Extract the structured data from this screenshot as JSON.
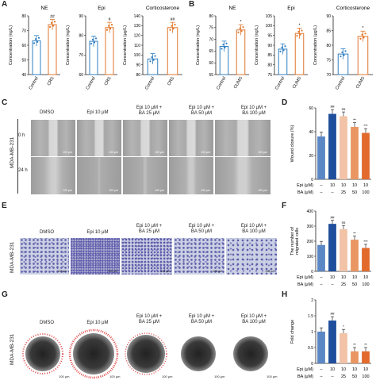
{
  "panels": {
    "A": {
      "label": "A"
    },
    "B": {
      "label": "B"
    },
    "C": {
      "label": "C"
    },
    "D": {
      "label": "D"
    },
    "E": {
      "label": "E"
    },
    "F": {
      "label": "F"
    },
    "G": {
      "label": "G"
    },
    "H": {
      "label": "H"
    }
  },
  "cell_line": "MDA-MB-231",
  "timepoints": [
    "0 h",
    "24 h"
  ],
  "column_titles": [
    "DMSO",
    "Epi 10 μM",
    "Epi 10 μM +\nBA 25 μM",
    "Epi 10 μM +\nBA 50 μM",
    "Epi 10 μM +\nBA 100 μM"
  ],
  "scale_bar": "100 μm",
  "colors": {
    "blue": "#2f7fc1",
    "orange": "#e0752b",
    "bar1": "#5b87c5",
    "bar2": "#1f4e9c",
    "bar3": "#f2c3a6",
    "bar4": "#ea9662",
    "bar5": "#e26a2c",
    "stain": "#6a63b3"
  },
  "chart_data": [
    {
      "id": "A1",
      "type": "bar",
      "title": "NE",
      "ylabel": "Concentration (ng/L)",
      "categories": [
        "Control",
        "CRS"
      ],
      "values": [
        63,
        74
      ],
      "ylim": [
        40,
        80
      ],
      "yticks": [
        40,
        50,
        60,
        70,
        80
      ],
      "sig": [
        "",
        "##"
      ],
      "colors": [
        "blue",
        "orange"
      ]
    },
    {
      "id": "A2",
      "type": "bar",
      "title": "Epi",
      "ylabel": "Concentration (ng/L)",
      "categories": [
        "Control",
        "CRS"
      ],
      "values": [
        77,
        84
      ],
      "ylim": [
        60,
        90
      ],
      "yticks": [
        60,
        70,
        80,
        90
      ],
      "sig": [
        "",
        "#"
      ],
      "colors": [
        "blue",
        "orange"
      ]
    },
    {
      "id": "A3",
      "type": "bar",
      "title": "Corticosterone",
      "ylabel": "Concentration (μg/L)",
      "categories": [
        "Control",
        "CRS"
      ],
      "values": [
        96,
        128
      ],
      "ylim": [
        80,
        140
      ],
      "yticks": [
        80,
        90,
        100,
        110,
        120,
        130,
        140
      ],
      "sig": [
        "",
        "##"
      ],
      "colors": [
        "blue",
        "orange"
      ]
    },
    {
      "id": "B1",
      "type": "bar",
      "title": "NE",
      "ylabel": "Concentration (ng/L)",
      "categories": [
        "Control",
        "CUMS"
      ],
      "values": [
        67,
        74
      ],
      "ylim": [
        55,
        80
      ],
      "yticks": [
        55,
        60,
        65,
        70,
        75,
        80
      ],
      "sig": [
        "",
        "*"
      ],
      "colors": [
        "blue",
        "orange"
      ]
    },
    {
      "id": "B2",
      "type": "bar",
      "title": "Epi",
      "ylabel": "Concentration (ng/L)",
      "categories": [
        "Control",
        "CUMS"
      ],
      "values": [
        88,
        96
      ],
      "ylim": [
        75,
        105
      ],
      "yticks": [
        75,
        80,
        85,
        90,
        95,
        100,
        105
      ],
      "sig": [
        "",
        "*"
      ],
      "colors": [
        "blue",
        "orange"
      ]
    },
    {
      "id": "B3",
      "type": "bar",
      "title": "Corticosterone",
      "ylabel": "Concentration (μg/L)",
      "categories": [
        "Control",
        "CUMS"
      ],
      "values": [
        77,
        83
      ],
      "ylim": [
        70,
        90
      ],
      "yticks": [
        70,
        75,
        80,
        85,
        90
      ],
      "sig": [
        "",
        "*"
      ],
      "colors": [
        "blue",
        "orange"
      ]
    },
    {
      "id": "D",
      "type": "bar",
      "ylabel": "Wound closure (%)",
      "rows": [
        {
          "label": "Epi (μM)",
          "values": [
            "–",
            "10",
            "10",
            "10",
            "10"
          ]
        },
        {
          "label": "BA (μM)",
          "values": [
            "–",
            "–",
            "25",
            "50",
            "100"
          ]
        }
      ],
      "values": [
        36,
        55,
        53,
        44,
        39
      ],
      "ylim": [
        0,
        60
      ],
      "yticks": [
        0,
        20,
        40,
        60
      ],
      "sig": [
        "",
        "##",
        "ns",
        "**",
        "***"
      ],
      "colors": [
        "bar1",
        "bar2",
        "bar3",
        "bar4",
        "bar5"
      ]
    },
    {
      "id": "F",
      "type": "bar",
      "ylabel": "The number of\nmigrated cells",
      "rows": [
        {
          "label": "Epi (μM)",
          "values": [
            "–",
            "10",
            "10",
            "10",
            "10"
          ]
        },
        {
          "label": "BA (μM)",
          "values": [
            "–",
            "–",
            "25",
            "50",
            "100"
          ]
        }
      ],
      "values": [
        175,
        315,
        280,
        210,
        155
      ],
      "ylim": [
        0,
        400
      ],
      "yticks": [
        0,
        100,
        200,
        300,
        400
      ],
      "sig": [
        "",
        "##",
        "ns",
        "**",
        "***"
      ],
      "colors": [
        "bar1",
        "bar2",
        "bar3",
        "bar4",
        "bar5"
      ]
    },
    {
      "id": "H",
      "type": "bar",
      "ylabel": "Fold change",
      "rows": [
        {
          "label": "Epi (μM)",
          "values": [
            "–",
            "10",
            "10",
            "10",
            "10"
          ]
        },
        {
          "label": "BA (μM)",
          "values": [
            "–",
            "–",
            "25",
            "50",
            "100"
          ]
        }
      ],
      "values": [
        1.0,
        1.35,
        0.95,
        0.38,
        0.38
      ],
      "ylim": [
        0,
        2.0
      ],
      "yticks": [
        0,
        0.5,
        1.0,
        1.5,
        2.0
      ],
      "sig": [
        "",
        "##",
        "*",
        "**",
        "**"
      ],
      "colors": [
        "bar1",
        "bar2",
        "bar3",
        "bar4",
        "bar5"
      ]
    }
  ]
}
